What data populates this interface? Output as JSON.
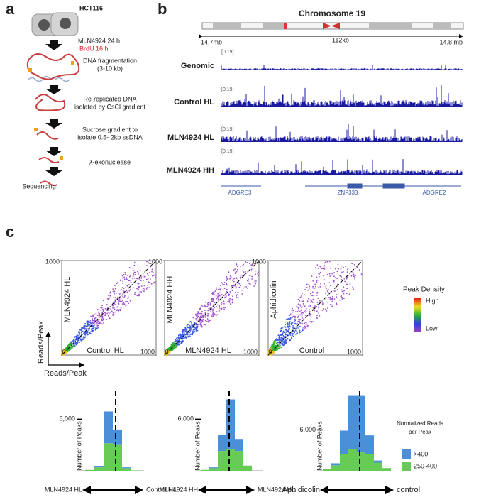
{
  "panel_a": {
    "label": "a",
    "cell_line": "HCT116",
    "treatment": "MLN4924 24 h",
    "brdu": "BrdU 16 h",
    "steps": [
      [
        "DNA fragmentation",
        "(3-10 kb)"
      ],
      [
        "Re-replicated DNA",
        "isolated by CsCl gradient"
      ],
      [
        "Sucrose gradient to",
        "isolate 0.5- 2kb ssDNA"
      ],
      [
        "λ-exonuclease"
      ]
    ],
    "final": "Sequencing"
  },
  "panel_b": {
    "label": "b",
    "title": "Chromosome 19",
    "left_coord": "14.7mb",
    "span": "112kb",
    "right_coord": "14.8 mb",
    "tracks": [
      {
        "name": "Genomic",
        "range": "[0,19]"
      },
      {
        "name": "Control HL",
        "range": "[0,19]"
      },
      {
        "name": "MLN4924 HL",
        "range": "[0,19]"
      },
      {
        "name": "MLN4924 HH",
        "range": "[0,19]"
      }
    ],
    "genes": [
      "ADGRE3",
      "ZNF333",
      "ADGRE2"
    ]
  },
  "panel_c": {
    "label": "c",
    "scatter_axis_x": "Reads/Peak",
    "scatter_axis_y": "Reads/Peak",
    "scatters": [
      {
        "xlabel": "Control HL",
        "ylabel": "MLN4924 HL",
        "lim": [
          0,
          1000
        ],
        "xticks": [
          0,
          1000
        ],
        "yticks": [
          1000
        ]
      },
      {
        "xlabel": "MLN4924 HL",
        "ylabel": "MLN4924 HH",
        "lim": [
          0,
          1000
        ],
        "xticks": [
          0,
          1000
        ],
        "yticks": [
          1000
        ]
      },
      {
        "xlabel": "Control",
        "ylabel": "Aphidicolin",
        "lim": [
          0,
          1000
        ],
        "xticks": [
          0,
          1000
        ],
        "yticks": [
          1000
        ]
      }
    ],
    "density_legend": {
      "title": "Peak Density",
      "high": "High",
      "low": "Low"
    },
    "hist_legend": {
      "title": [
        "Normalized Reads",
        "per Peak"
      ],
      "series": [
        {
          "name": ">400",
          "color": "#4a90d9"
        },
        {
          "name": "250-400",
          "color": "#66cc55"
        }
      ]
    },
    "histograms": [
      {
        "ylabel": "Number of Peaks",
        "ylim": [
          0,
          9500
        ],
        "yticks": [
          {
            "value": 6000,
            "label": "6,000"
          }
        ],
        "left": "MLN4924 HL",
        "right": "Control HL",
        "series": [
          {
            "values": [
              0,
              100,
              3700,
              1800,
              100,
              0
            ]
          },
          {
            "values": [
              100,
              400,
              3200,
              3000,
              300,
              50
            ]
          }
        ]
      },
      {
        "ylabel": "Number of Peaks",
        "ylim": [
          0,
          9500
        ],
        "yticks": [
          {
            "value": 6000,
            "label": "6,000"
          }
        ],
        "left": "MLN4924 HH",
        "right": "MLN4924 HL",
        "series": [
          {
            "values": [
              0,
              100,
              1900,
              5800,
              1400,
              0
            ]
          },
          {
            "values": [
              100,
              300,
              2300,
              2500,
              2300,
              600
            ]
          }
        ]
      },
      {
        "ylabel": "Number of Peaks",
        "ylim": [
          0,
          12000
        ],
        "yticks": [
          {
            "value": 6000,
            "label": "6,000"
          }
        ],
        "left": "Aphidicolin",
        "right": "control",
        "series": [
          {
            "values": [
              0,
              300,
              3400,
              7800,
              8300,
              2700,
              300,
              0
            ]
          },
          {
            "values": [
              300,
              800,
              2500,
              3200,
              2700,
              2500,
              1200,
              400
            ]
          }
        ]
      }
    ]
  }
}
